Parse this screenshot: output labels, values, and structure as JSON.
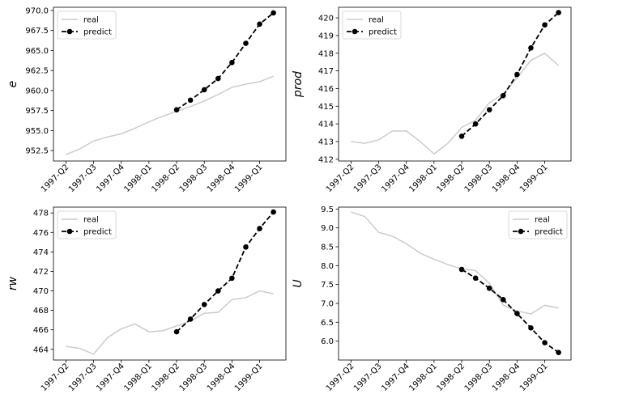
{
  "chart_data": [
    {
      "type": "line",
      "ylabel": "e",
      "ylim": [
        951.2,
        970.4
      ],
      "yticks": [
        952.5,
        955.0,
        957.5,
        960.0,
        962.5,
        965.0,
        967.5,
        970.0
      ],
      "ytick_labels": [
        "952.5",
        "955.0",
        "957.5",
        "960.0",
        "962.5",
        "965.0",
        "967.5",
        "970.0"
      ],
      "x_tick_labels": [
        "1997-Q2",
        "1997-Q3",
        "1997-Q4",
        "1998-Q1",
        "1998-Q2",
        "1998-Q3",
        "1998-Q4",
        "1999-Q1"
      ],
      "legend_position": "upper-left",
      "series": [
        {
          "name": "real",
          "color": "#cccccc",
          "style": "solid",
          "x": [
            0,
            0.5,
            1,
            1.5,
            2,
            2.5,
            3,
            3.5,
            4,
            4.5,
            5,
            5.5,
            6,
            6.5,
            7,
            7.5
          ],
          "values": [
            952.0,
            952.7,
            953.7,
            954.2,
            954.6,
            955.3,
            956.1,
            956.8,
            957.4,
            958.0,
            958.7,
            959.5,
            960.4,
            960.8,
            961.1,
            961.8
          ]
        },
        {
          "name": "predict",
          "color": "#000000",
          "style": "dashed-marker",
          "x": [
            4,
            4.5,
            5,
            5.5,
            6,
            6.5,
            7,
            7.5
          ],
          "values": [
            957.6,
            958.8,
            960.1,
            961.5,
            963.5,
            965.9,
            968.3,
            969.7
          ]
        }
      ]
    },
    {
      "type": "line",
      "ylabel": "prod",
      "ylim": [
        411.9,
        420.6
      ],
      "yticks": [
        412,
        413,
        414,
        415,
        416,
        417,
        418,
        419,
        420
      ],
      "ytick_labels": [
        "412",
        "413",
        "414",
        "415",
        "416",
        "417",
        "418",
        "419",
        "420"
      ],
      "x_tick_labels": [
        "1997-Q2",
        "1997-Q3",
        "1997-Q4",
        "1998-Q1",
        "1998-Q2",
        "1998-Q3",
        "1998-Q4",
        "1999-Q1"
      ],
      "legend_position": "upper-left",
      "series": [
        {
          "name": "real",
          "color": "#cccccc",
          "style": "solid",
          "x": [
            0,
            0.5,
            1,
            1.5,
            2,
            2.5,
            3,
            3.5,
            4,
            4.5,
            5,
            5.5,
            6,
            6.5,
            7,
            7.5
          ],
          "values": [
            413.0,
            412.9,
            413.1,
            413.6,
            413.6,
            413.0,
            412.3,
            412.9,
            413.8,
            414.2,
            415.2,
            415.7,
            416.6,
            417.6,
            418.0,
            417.3
          ]
        },
        {
          "name": "predict",
          "color": "#000000",
          "style": "dashed-marker",
          "x": [
            4,
            4.5,
            5,
            5.5,
            6,
            6.5,
            7,
            7.5
          ],
          "values": [
            413.3,
            414.0,
            414.8,
            415.6,
            416.8,
            418.3,
            419.6,
            420.3
          ]
        }
      ]
    },
    {
      "type": "line",
      "ylabel": "rw",
      "ylim": [
        462.9,
        478.6
      ],
      "yticks": [
        464,
        466,
        468,
        470,
        472,
        474,
        476,
        478
      ],
      "ytick_labels": [
        "464",
        "466",
        "468",
        "470",
        "472",
        "474",
        "476",
        "478"
      ],
      "x_tick_labels": [
        "1997-Q2",
        "1997-Q3",
        "1997-Q4",
        "1998-Q1",
        "1998-Q2",
        "1998-Q3",
        "1998-Q4",
        "1999-Q1"
      ],
      "legend_position": "upper-left",
      "series": [
        {
          "name": "real",
          "color": "#cccccc",
          "style": "solid",
          "x": [
            0,
            0.5,
            1,
            1.5,
            2,
            2.5,
            3,
            3.5,
            4,
            4.5,
            5,
            5.5,
            6,
            6.5,
            7,
            7.5
          ],
          "values": [
            464.3,
            464.1,
            463.5,
            465.2,
            466.1,
            466.6,
            465.8,
            465.9,
            466.4,
            466.9,
            467.7,
            467.8,
            469.1,
            469.3,
            470.0,
            469.7
          ]
        },
        {
          "name": "predict",
          "color": "#000000",
          "style": "dashed-marker",
          "x": [
            4,
            4.5,
            5,
            5.5,
            6,
            6.5,
            7,
            7.5
          ],
          "values": [
            465.8,
            467.1,
            468.6,
            470.0,
            471.3,
            474.5,
            476.4,
            478.1
          ]
        }
      ]
    },
    {
      "type": "line",
      "ylabel": "U",
      "ylim": [
        5.5,
        9.55
      ],
      "yticks": [
        6.0,
        6.5,
        7.0,
        7.5,
        8.0,
        8.5,
        9.0,
        9.5
      ],
      "ytick_labels": [
        "6.0",
        "6.5",
        "7.0",
        "7.5",
        "8.0",
        "8.5",
        "9.0",
        "9.5"
      ],
      "x_tick_labels": [
        "1997-Q2",
        "1997-Q3",
        "1997-Q4",
        "1998-Q1",
        "1998-Q2",
        "1998-Q3",
        "1998-Q4",
        "1999-Q1"
      ],
      "legend_position": "upper-right",
      "series": [
        {
          "name": "real",
          "color": "#cccccc",
          "style": "solid",
          "x": [
            0,
            0.5,
            1,
            1.5,
            2,
            2.5,
            3,
            3.5,
            4,
            4.5,
            5,
            5.5,
            6,
            6.5,
            7,
            7.5
          ],
          "values": [
            9.42,
            9.3,
            8.88,
            8.78,
            8.58,
            8.33,
            8.17,
            8.03,
            7.91,
            7.87,
            7.53,
            6.95,
            6.8,
            6.72,
            6.95,
            6.88
          ]
        },
        {
          "name": "predict",
          "color": "#000000",
          "style": "dashed-marker",
          "x": [
            4,
            4.5,
            5,
            5.5,
            6,
            6.5,
            7,
            7.5
          ],
          "values": [
            7.9,
            7.67,
            7.4,
            7.1,
            6.73,
            6.35,
            5.96,
            5.7
          ]
        }
      ]
    }
  ]
}
